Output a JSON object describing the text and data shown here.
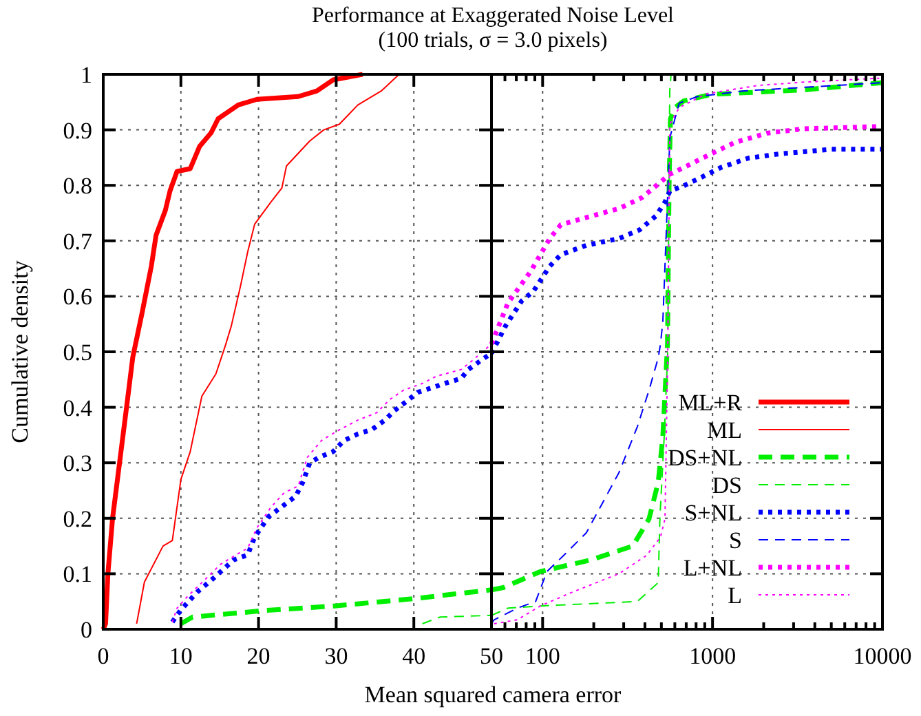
{
  "chart_data": [
    {
      "type": "line",
      "title": "Performance at Exaggerated Noise Level",
      "subtitle": "(100 trials, σ = 3.0 pixels)",
      "xlabel": "Mean squared camera error",
      "ylabel": "Cumulative density",
      "xlim": [
        0,
        50
      ],
      "ylim": [
        0,
        1
      ],
      "xticks": [
        0,
        10,
        20,
        30,
        40,
        {
          "value": 50,
          "label": null
        }
      ],
      "yticks": [
        0,
        0.1,
        0.2,
        0.3,
        0.4,
        0.5,
        0.6,
        0.7,
        0.8,
        0.9,
        1
      ],
      "grid": true,
      "series": [
        {
          "color": "#ff0000",
          "line_style": "solid",
          "x": [
            0,
            0.3,
            0.6,
            1.2,
            2.1,
            3.0,
            3.8,
            5.0,
            6.2,
            6.8,
            8.0,
            8.6,
            9.5,
            11.2,
            12.4,
            13.9,
            14.8,
            17.4,
            19.8,
            25.1,
            27.5,
            29.6,
            33.4
          ],
          "values": [
            0,
            0.01,
            0.1,
            0.2,
            0.3,
            0.4,
            0.49,
            0.57,
            0.655,
            0.71,
            0.755,
            0.79,
            0.825,
            0.83,
            0.87,
            0.895,
            0.92,
            0.945,
            0.955,
            0.96,
            0.97,
            0.99,
            1.0
          ]
        },
        {
          "color": "#ff0000",
          "line_style": "solid",
          "x": [
            4.3,
            5.3,
            7.7,
            8.9,
            10.0,
            11.2,
            12.7,
            14.5,
            15.7,
            16.5,
            17.7,
            18.6,
            19.5,
            21.6,
            23.0,
            23.6,
            26.6,
            28.4,
            30.4,
            32.8,
            35.8,
            38.1
          ],
          "values": [
            0.01,
            0.085,
            0.15,
            0.16,
            0.27,
            0.32,
            0.42,
            0.46,
            0.51,
            0.547,
            0.62,
            0.68,
            0.73,
            0.77,
            0.795,
            0.835,
            0.88,
            0.9,
            0.91,
            0.945,
            0.97,
            1.0
          ]
        },
        {
          "color": "#00ee00",
          "line_style": "dashed",
          "x": [
            10,
            11.5,
            21,
            29.8,
            39.9,
            50
          ],
          "values": [
            0.01,
            0.022,
            0.034,
            0.042,
            0.055,
            0.071
          ]
        },
        {
          "color": "#00ee00",
          "line_style": "dashed",
          "x": [
            41.1,
            43.4,
            50
          ],
          "values": [
            0.01,
            0.022,
            0.025
          ]
        },
        {
          "color": "#0000ff",
          "line_style": "dotted",
          "x": [
            8.9,
            10,
            12.1,
            14.2,
            16.8,
            18.6,
            19.5,
            21.3,
            23.3,
            24.8,
            25.7,
            26.6,
            27.8,
            29.6,
            31.0,
            32.8,
            34.6,
            36.3,
            37.5,
            39.0,
            40.5,
            42.3,
            44.0,
            46.1,
            47.0,
            49.1,
            50
          ],
          "values": [
            0.013,
            0.035,
            0.067,
            0.092,
            0.125,
            0.134,
            0.166,
            0.203,
            0.224,
            0.24,
            0.265,
            0.3,
            0.31,
            0.32,
            0.34,
            0.352,
            0.36,
            0.377,
            0.394,
            0.41,
            0.427,
            0.435,
            0.443,
            0.452,
            0.468,
            0.489,
            0.497
          ]
        },
        {
          "color": "#ff00ff",
          "line_style": "dotted",
          "x": [
            8.9,
            9.5,
            10.9,
            13.0,
            15.1,
            17.1,
            18.6,
            19.8,
            21.6,
            23.3,
            25.1,
            26.3,
            28.1,
            30.1,
            32.8,
            35.2,
            36.9,
            38.7,
            41.1,
            42.9,
            46.1,
            47.6,
            50
          ],
          "values": [
            0.013,
            0.038,
            0.06,
            0.088,
            0.117,
            0.134,
            0.146,
            0.183,
            0.22,
            0.246,
            0.258,
            0.31,
            0.34,
            0.357,
            0.377,
            0.39,
            0.414,
            0.431,
            0.443,
            0.456,
            0.468,
            0.485,
            0.514
          ]
        }
      ]
    },
    {
      "type": "line",
      "log": "x",
      "xlim": [
        50,
        10000
      ],
      "ylim": [
        0,
        1
      ],
      "xticks": [
        50,
        {
          "value": 60,
          "label": null
        },
        {
          "value": 70,
          "label": null
        },
        {
          "value": 80,
          "label": null
        },
        {
          "value": 90,
          "label": null
        },
        100,
        {
          "value": 200,
          "label": null
        },
        {
          "value": 300,
          "label": null
        },
        {
          "value": 400,
          "label": null
        },
        {
          "value": 500,
          "label": null
        },
        {
          "value": 600,
          "label": null
        },
        {
          "value": 700,
          "label": null
        },
        {
          "value": 800,
          "label": null
        },
        {
          "value": 900,
          "label": null
        },
        1000,
        {
          "value": 2000,
          "label": null
        },
        {
          "value": 3000,
          "label": null
        },
        {
          "value": 4000,
          "label": null
        },
        {
          "value": 5000,
          "label": null
        },
        {
          "value": 6000,
          "label": null
        },
        {
          "value": 7000,
          "label": null
        },
        {
          "value": 8000,
          "label": null
        },
        {
          "value": 9000,
          "label": null
        },
        10000
      ],
      "yticks": [
        0,
        0.1,
        0.2,
        0.3,
        0.4,
        0.5,
        0.6,
        0.7,
        0.8,
        0.9,
        1
      ],
      "tick_labels": "x",
      "grid": true,
      "legend": "bottom right",
      "series": [
        {
          "name": "ML+R",
          "color": "#ff0000",
          "line_style": "solid"
        },
        {
          "name": "ML",
          "color": "#ff0000",
          "line_style": "solid"
        },
        {
          "name": "DS+NL",
          "color": "#00ee00",
          "line_style": "dashed",
          "x": [
            50,
            58.7,
            97,
            193,
            339,
            423,
            479,
            510,
            543,
            555,
            565,
            600,
            675,
            984,
            1850,
            3441,
            10000
          ],
          "values": [
            0.071,
            0.075,
            0.104,
            0.125,
            0.15,
            0.199,
            0.265,
            0.348,
            0.514,
            0.8,
            0.92,
            0.94,
            0.952,
            0.964,
            0.968,
            0.972,
            0.985
          ]
        },
        {
          "name": "DS",
          "color": "#00ee00",
          "line_style": "dashed",
          "x": [
            50,
            62.5,
            97,
            361,
            479,
            490,
            520,
            545,
            560,
            570
          ],
          "values": [
            0.025,
            0.038,
            0.042,
            0.05,
            0.084,
            0.2,
            0.35,
            0.5,
            0.97,
            1.0
          ]
        },
        {
          "name": "S+NL",
          "color": "#0000ff",
          "line_style": "dotted",
          "x": [
            50,
            60.6,
            75.4,
            88.2,
            109.9,
            128,
            181,
            281,
            373,
            465,
            525,
            561,
            675,
            867,
            1117,
            1622,
            2526,
            5017,
            10000
          ],
          "values": [
            0.497,
            0.547,
            0.592,
            0.609,
            0.654,
            0.675,
            0.692,
            0.704,
            0.72,
            0.745,
            0.77,
            0.79,
            0.799,
            0.815,
            0.832,
            0.849,
            0.857,
            0.865,
            0.865
          ]
        },
        {
          "name": "S",
          "color": "#0000ff",
          "line_style": "dashed",
          "x": [
            50,
            51.8,
            70.9,
            91,
            106,
            133,
            181,
            281,
            361,
            423,
            479,
            494,
            510,
            561,
            636,
            815,
            1117,
            1500,
            10000
          ],
          "values": [
            0.01,
            0.017,
            0.038,
            0.05,
            0.104,
            0.133,
            0.174,
            0.282,
            0.365,
            0.431,
            0.489,
            0.514,
            0.555,
            0.886,
            0.948,
            0.96,
            0.965,
            0.97,
            0.985
          ]
        },
        {
          "name": "L+NL",
          "color": "#ff00ff",
          "line_style": "dotted",
          "x": [
            50,
            62.5,
            85.5,
            110,
            128,
            218,
            281,
            385,
            465,
            561,
            719,
            984,
            1347,
            2084,
            3441,
            9570
          ],
          "values": [
            0.514,
            0.588,
            0.646,
            0.704,
            0.729,
            0.749,
            0.758,
            0.778,
            0.799,
            0.82,
            0.836,
            0.857,
            0.877,
            0.894,
            0.902,
            0.906
          ]
        },
        {
          "name": "L",
          "color": "#ff00ff",
          "line_style": "dotted",
          "x": [
            51.8,
            70.9,
            97,
            150,
            281,
            409,
            494,
            525,
            545,
            561,
            636,
            923,
            1850,
            3441,
            9570
          ],
          "values": [
            0.01,
            0.017,
            0.042,
            0.067,
            0.1,
            0.133,
            0.166,
            0.199,
            0.5,
            0.91,
            0.94,
            0.965,
            0.98,
            0.986,
            0.993
          ]
        }
      ]
    }
  ]
}
